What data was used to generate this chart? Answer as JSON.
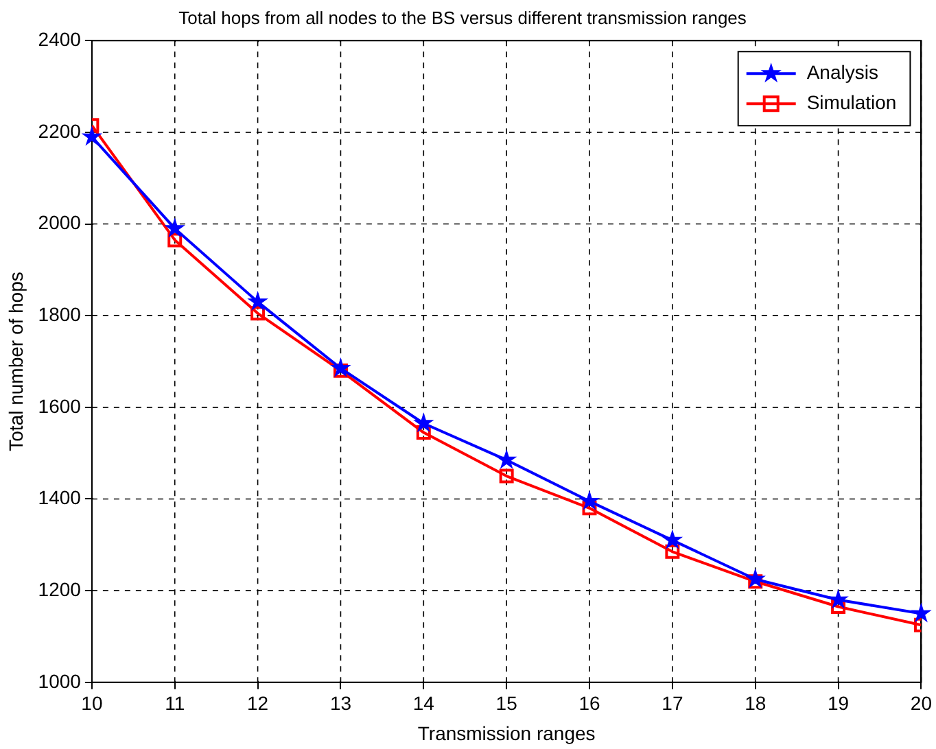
{
  "chart_data": {
    "type": "line",
    "title": "Total hops from all nodes to the BS versus different transmission ranges",
    "xlabel": "Transmission ranges",
    "ylabel": "Total number of hops",
    "x": [
      10,
      11,
      12,
      13,
      14,
      15,
      16,
      17,
      18,
      19,
      20
    ],
    "series": [
      {
        "name": "Analysis",
        "color": "#0000ff",
        "marker": "star",
        "values": [
          2190,
          1990,
          1830,
          1685,
          1565,
          1485,
          1395,
          1310,
          1225,
          1180,
          1150
        ]
      },
      {
        "name": "Simulation",
        "color": "#ff0000",
        "marker": "square",
        "values": [
          2215,
          1965,
          1805,
          1680,
          1545,
          1450,
          1380,
          1285,
          1220,
          1165,
          1125
        ]
      }
    ],
    "xlim": [
      10,
      20
    ],
    "xticks": [
      10,
      11,
      12,
      13,
      14,
      15,
      16,
      17,
      18,
      19,
      20
    ],
    "ylim": [
      1000,
      2400
    ],
    "yticks": [
      1000,
      1200,
      1400,
      1600,
      1800,
      2000,
      2200,
      2400
    ],
    "grid": true,
    "legend": "top right",
    "line_style": "solid"
  }
}
